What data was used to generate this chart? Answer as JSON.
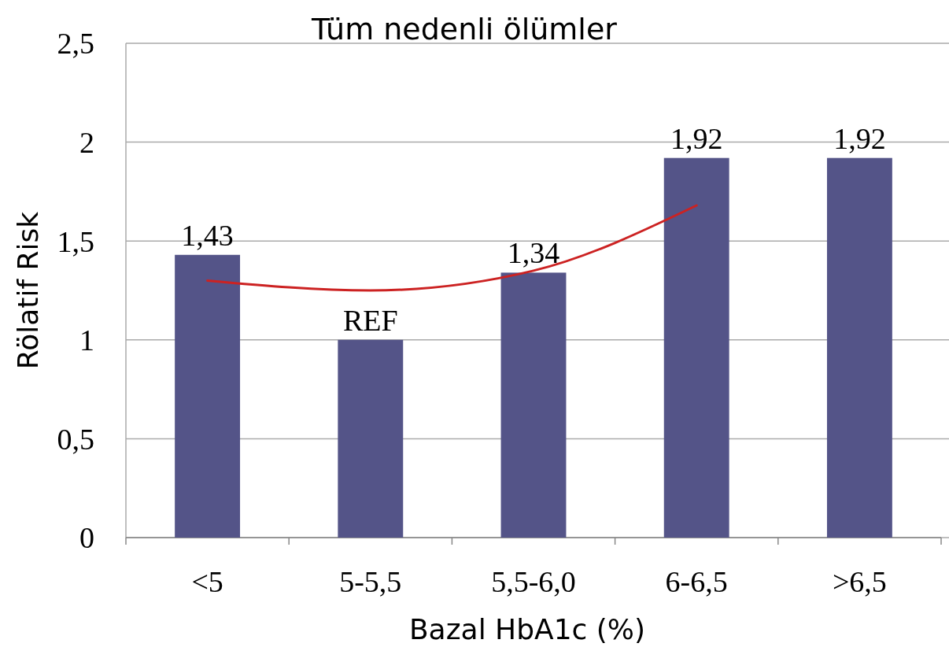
{
  "chart_data": {
    "type": "bar",
    "title": "Tüm nedenli ölümler",
    "xlabel": "Bazal HbA1c (%)",
    "ylabel": "Rölatif Risk",
    "categories": [
      "<5",
      "5-5,5",
      "5,5-6,0",
      "6-6,5",
      ">6,5"
    ],
    "series": [
      {
        "color": "#545488",
        "values": [
          1.43,
          1.0,
          1.34,
          1.92,
          1.92
        ],
        "value_labels": [
          "1,43",
          "REF",
          "1,34",
          "1,92",
          "1,92"
        ]
      },
      {
        "type": "line",
        "color": "#cc2222",
        "values": [
          1.3,
          1.25,
          1.35,
          1.68,
          null
        ]
      }
    ],
    "ylim": [
      0,
      2.5
    ],
    "yticks": [
      0,
      {
        "value": 0.5,
        "label": "0,5"
      },
      1,
      {
        "value": 1.5,
        "label": "1,5"
      },
      2,
      {
        "value": 2.5,
        "label": "2,5"
      }
    ],
    "grid": "y"
  }
}
